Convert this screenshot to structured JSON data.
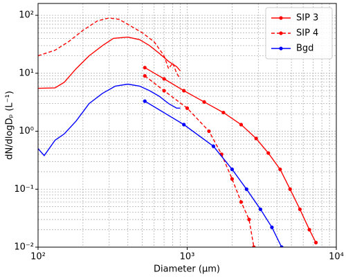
{
  "chart_data": {
    "type": "line",
    "xlabel": "Diameter (µm)",
    "ylabel": "dN/dlogDₚ (L⁻¹)",
    "xscale": "log",
    "yscale": "log",
    "xlim": [
      100,
      10000
    ],
    "xticks": [
      {
        "value": 100,
        "label": "10²"
      },
      {
        "value": 1000,
        "label": "10³"
      },
      {
        "value": 10000,
        "label": "10⁴"
      }
    ],
    "ylim": [
      0.01,
      160
    ],
    "yticks": [
      {
        "value": 0.01,
        "label": "10⁻²"
      },
      {
        "value": 0.1,
        "label": "10⁻¹"
      },
      {
        "value": 1,
        "label": "10⁰"
      },
      {
        "value": 10,
        "label": "10¹"
      },
      {
        "value": 100,
        "label": "10²"
      }
    ],
    "grid": true,
    "minor_grid": true,
    "legend": "upper right",
    "series": [
      {
        "name": "SIP 3",
        "color": "#ff0000",
        "dash": false,
        "x": [
          520,
          700,
          950,
          1300,
          1750,
          2300,
          2900,
          3500,
          4200,
          4900,
          5700,
          6600,
          7300
        ],
        "values": [
          12.5,
          8,
          5,
          3.2,
          2.1,
          1.3,
          0.75,
          0.42,
          0.22,
          0.1,
          0.045,
          0.02,
          0.012
        ],
        "spectrum": {
          "x": [
            100,
            130,
            150,
            180,
            220,
            270,
            320,
            400,
            480,
            560,
            650,
            750,
            850,
            900
          ],
          "values": [
            5.5,
            5.6,
            7,
            12,
            20,
            30,
            40,
            42,
            38,
            30,
            22,
            16,
            13,
            11
          ]
        }
      },
      {
        "name": "SIP 4",
        "color": "#ff0000",
        "dash": true,
        "x": [
          520,
          700,
          1000,
          1400,
          1700,
          2000,
          2300,
          2600,
          2800
        ],
        "values": [
          9,
          5,
          2.5,
          1.0,
          0.4,
          0.15,
          0.06,
          0.03,
          0.01
        ],
        "spectrum": {
          "x": [
            100,
            130,
            160,
            200,
            250,
            300,
            350,
            420,
            500,
            600,
            700,
            750,
            800,
            850,
            900
          ],
          "values": [
            20,
            25,
            35,
            55,
            80,
            90,
            85,
            65,
            50,
            35,
            20,
            12,
            15,
            10,
            8
          ]
        }
      },
      {
        "name": "Bgd",
        "color": "#0000ff",
        "dash": false,
        "x": [
          520,
          950,
          1500,
          2000,
          2500,
          3100,
          3700,
          4300
        ],
        "values": [
          3.3,
          1.3,
          0.55,
          0.22,
          0.1,
          0.045,
          0.022,
          0.01
        ],
        "spectrum": {
          "x": [
            100,
            110,
            130,
            150,
            180,
            220,
            270,
            330,
            400,
            480,
            560,
            650,
            750,
            850,
            900
          ],
          "values": [
            0.5,
            0.38,
            0.7,
            0.9,
            1.5,
            3,
            4.5,
            6,
            6.5,
            6,
            5,
            4,
            3,
            2.5,
            2.5
          ]
        }
      }
    ]
  }
}
